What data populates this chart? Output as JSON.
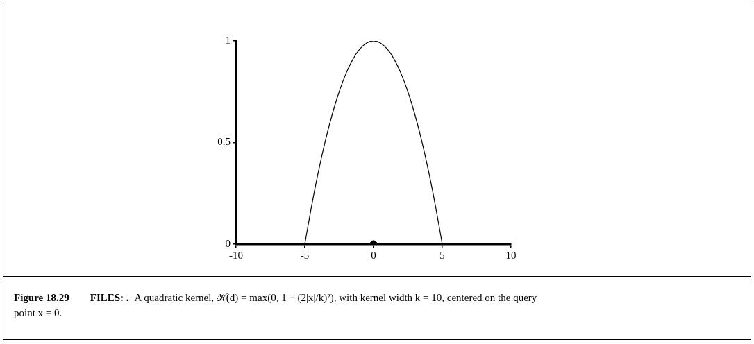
{
  "chart_data": {
    "type": "line",
    "xlim": [
      -10,
      10
    ],
    "xticks": [
      -10,
      -5,
      0,
      5,
      10
    ],
    "ylim": [
      0,
      1
    ],
    "yticks": [
      0,
      0.5,
      1
    ],
    "legend": false,
    "series": [
      {
        "color": "#000000",
        "marker": "none",
        "x": [
          -5,
          -4.5,
          -4,
          -3.5,
          -3,
          -2.5,
          -2,
          -1.5,
          -1,
          -0.5,
          0,
          0.5,
          1,
          1.5,
          2,
          2.5,
          3,
          3.5,
          4,
          4.5,
          5
        ],
        "values": [
          0,
          0.19,
          0.36,
          0.51,
          0.64,
          0.75,
          0.84,
          0.91,
          0.96,
          0.99,
          1,
          0.99,
          0.96,
          0.91,
          0.84,
          0.75,
          0.64,
          0.51,
          0.36,
          0.19,
          0
        ]
      },
      {
        "type": "scatter",
        "color": "#000000",
        "marker": "circle",
        "x": [
          0
        ],
        "values": [
          0
        ]
      }
    ],
    "annotations": [
      "Figure 18.29",
      "FILES: .",
      "A quadratic kernel, 𝒦(d) = max(0, 1 − (2|x|/k)²), with kernel width k = 10, centered on the query point x = 0."
    ]
  }
}
